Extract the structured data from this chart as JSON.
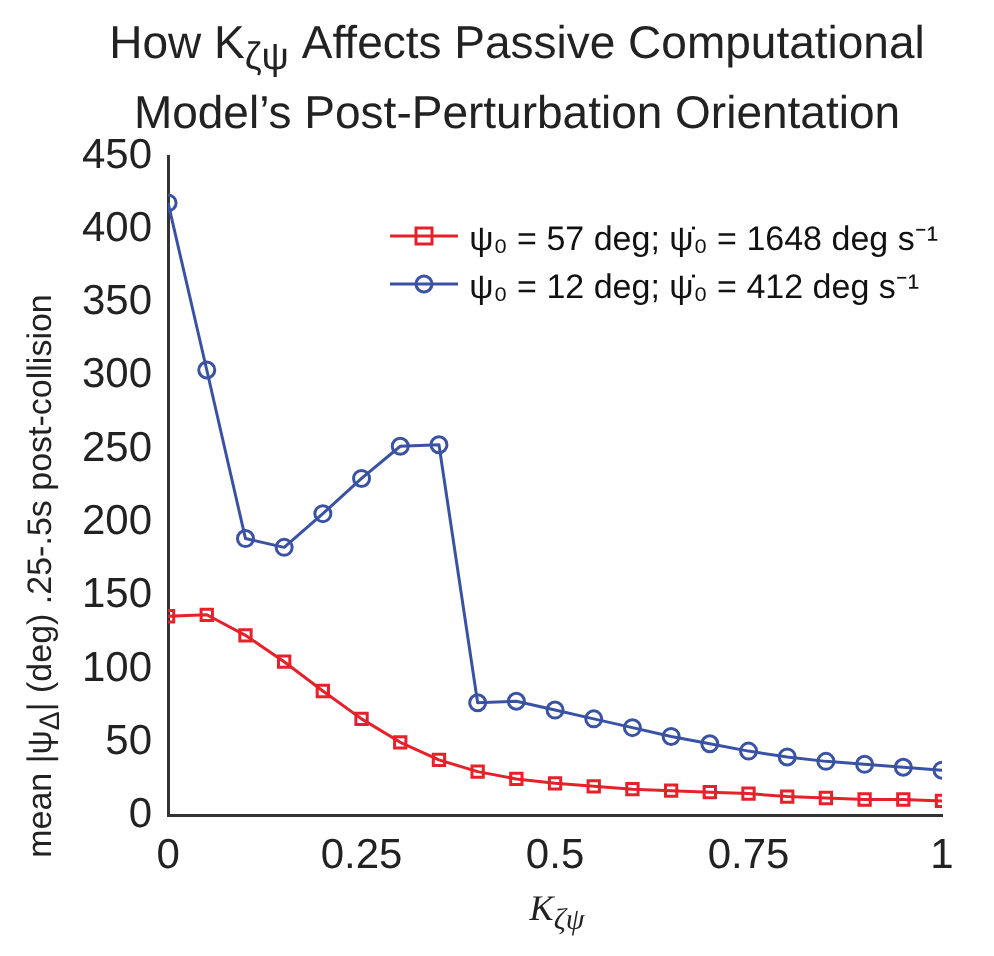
{
  "chart_data": {
    "type": "line",
    "title": "How K$_{ζψ}$ Affects Passive Computational Model’s Post-Perturbation Orientation",
    "xlabel": "K$_{ζψ}$",
    "ylabel": "mean |ψ$_{Δ}$| (deg) .25-.5s post-collision",
    "x": [
      0,
      0.05,
      0.1,
      0.15,
      0.2,
      0.25,
      0.3,
      0.35,
      0.4,
      0.45,
      0.5,
      0.55,
      0.6,
      0.65,
      0.7,
      0.75,
      0.8,
      0.85,
      0.9,
      0.95,
      1
    ],
    "series": [
      {
        "name": "ψ₀ = 57 deg;  ψ̇₀ = 1648 deg s⁻¹",
        "color": "#e8202a",
        "marker": "square",
        "values": [
          136,
          137,
          123,
          105,
          85,
          66,
          50,
          38,
          30,
          25,
          22,
          20,
          18,
          17,
          16,
          15,
          13,
          12,
          11,
          11,
          10
        ]
      },
      {
        "name": "ψ₀ = 12 deg;  ψ̇₀ = 412 deg s⁻¹",
        "color": "#3a52a4",
        "marker": "circle",
        "values": [
          418,
          304,
          189,
          183,
          206,
          230,
          252,
          253,
          77,
          78,
          72,
          66,
          60,
          54,
          49,
          44,
          40,
          37,
          35,
          33,
          31
        ]
      }
    ],
    "xlim": [
      0,
      1
    ],
    "xticks": [
      0,
      0.25,
      0.5,
      0.75,
      1
    ],
    "ylim": [
      0,
      450
    ],
    "yticks": [
      0,
      50,
      100,
      150,
      200,
      250,
      300,
      350,
      400,
      450
    ],
    "grid": false,
    "legend": "top right"
  }
}
